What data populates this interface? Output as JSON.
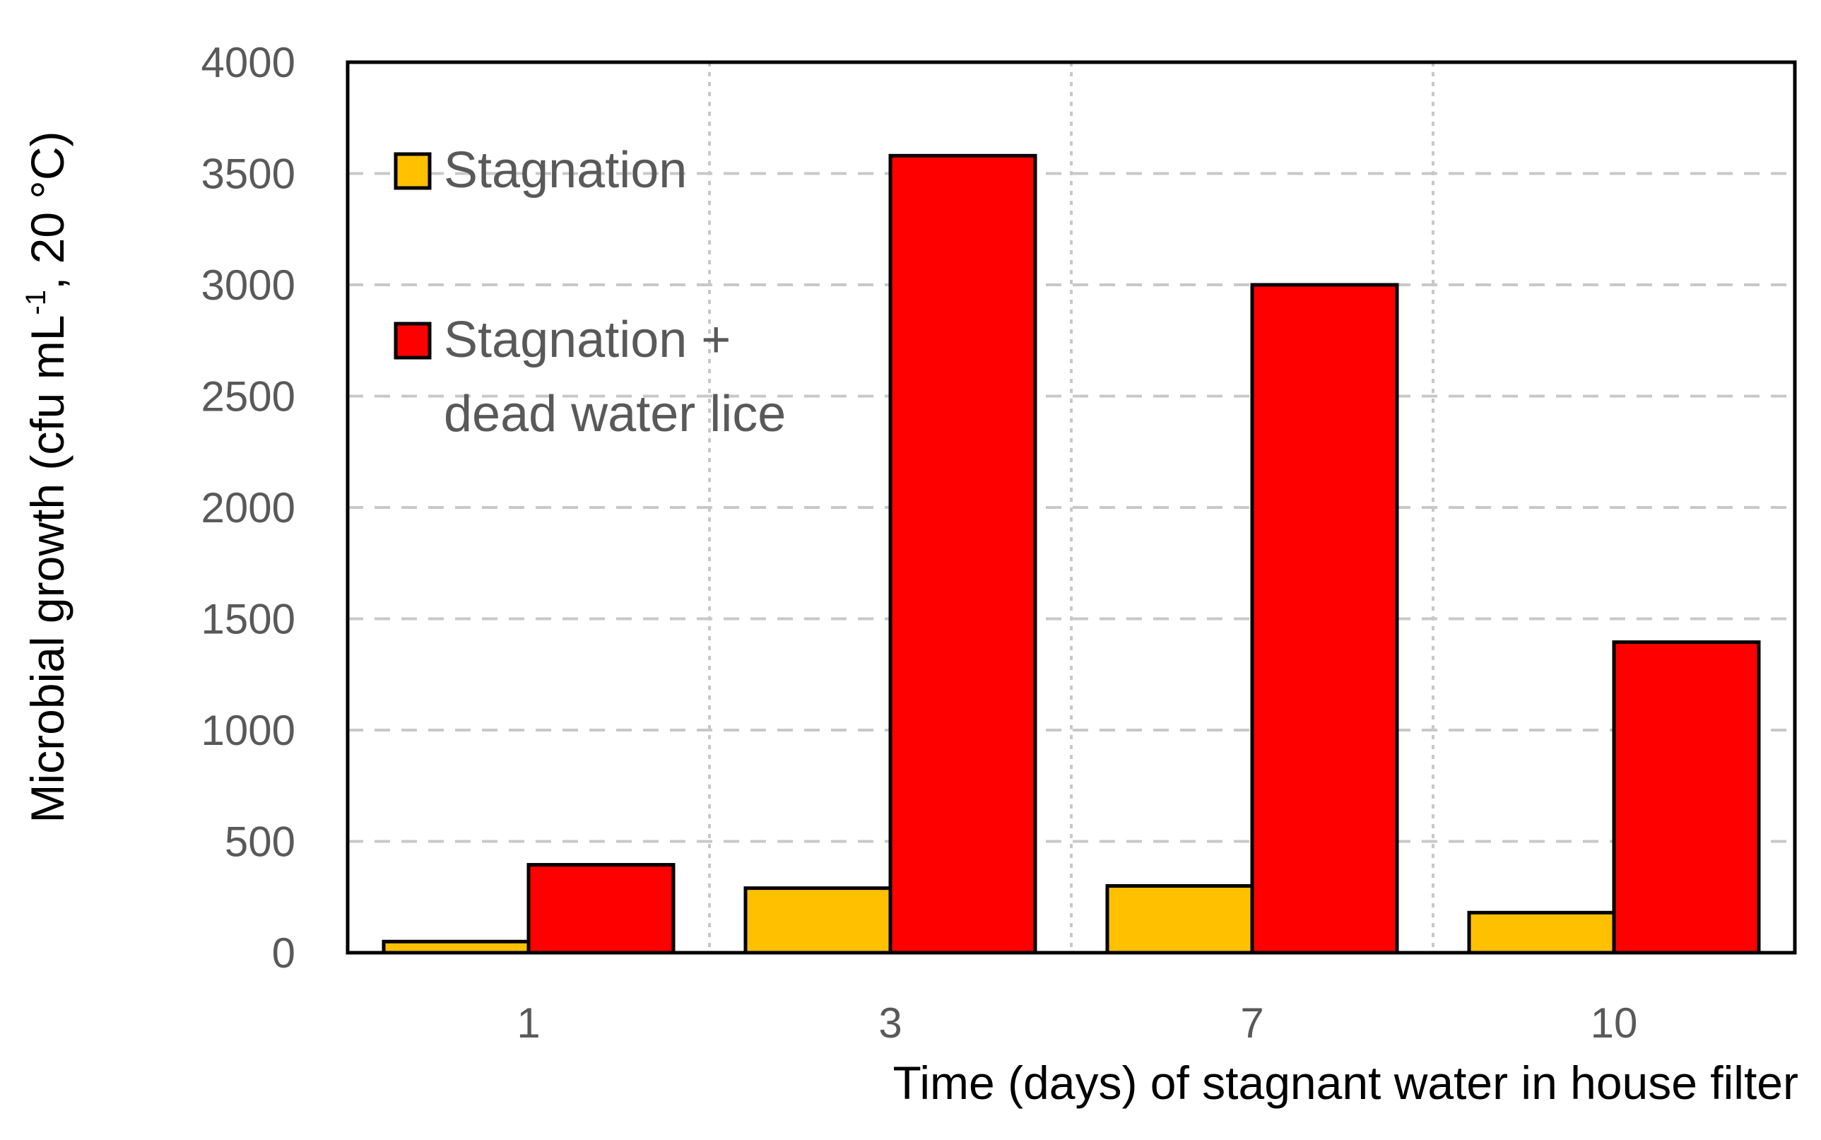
{
  "chart_data": {
    "type": "bar",
    "title": "",
    "xlabel": "Time (days) of stagnant water in house filter",
    "ylabel": "Microbial growth (cfu mL",
    "ylabel_sup": "-1",
    "ylabel_tail": ", 20 °C)",
    "categories": [
      "1",
      "3",
      "7",
      "10"
    ],
    "series": [
      {
        "name": "Stagnation",
        "color": "#FFC000",
        "values": [
          50,
          290,
          300,
          180
        ]
      },
      {
        "name": "Stagnation + dead water lice",
        "legend_lines": [
          "Stagnation +",
          "dead water lice"
        ],
        "color": "#FF0000",
        "values": [
          395,
          3580,
          3000,
          1395
        ]
      }
    ],
    "ylim": [
      0,
      4000
    ],
    "yticks": [
      "0",
      "500",
      "1000",
      "1500",
      "2000",
      "2500",
      "3000",
      "3500",
      "4000"
    ],
    "ytick_values": [
      0,
      500,
      1000,
      1500,
      2000,
      2500,
      3000,
      3500,
      4000
    ],
    "grid": "horizontal dashed and vertical dotted",
    "legend_position": "top-left inside plot"
  }
}
